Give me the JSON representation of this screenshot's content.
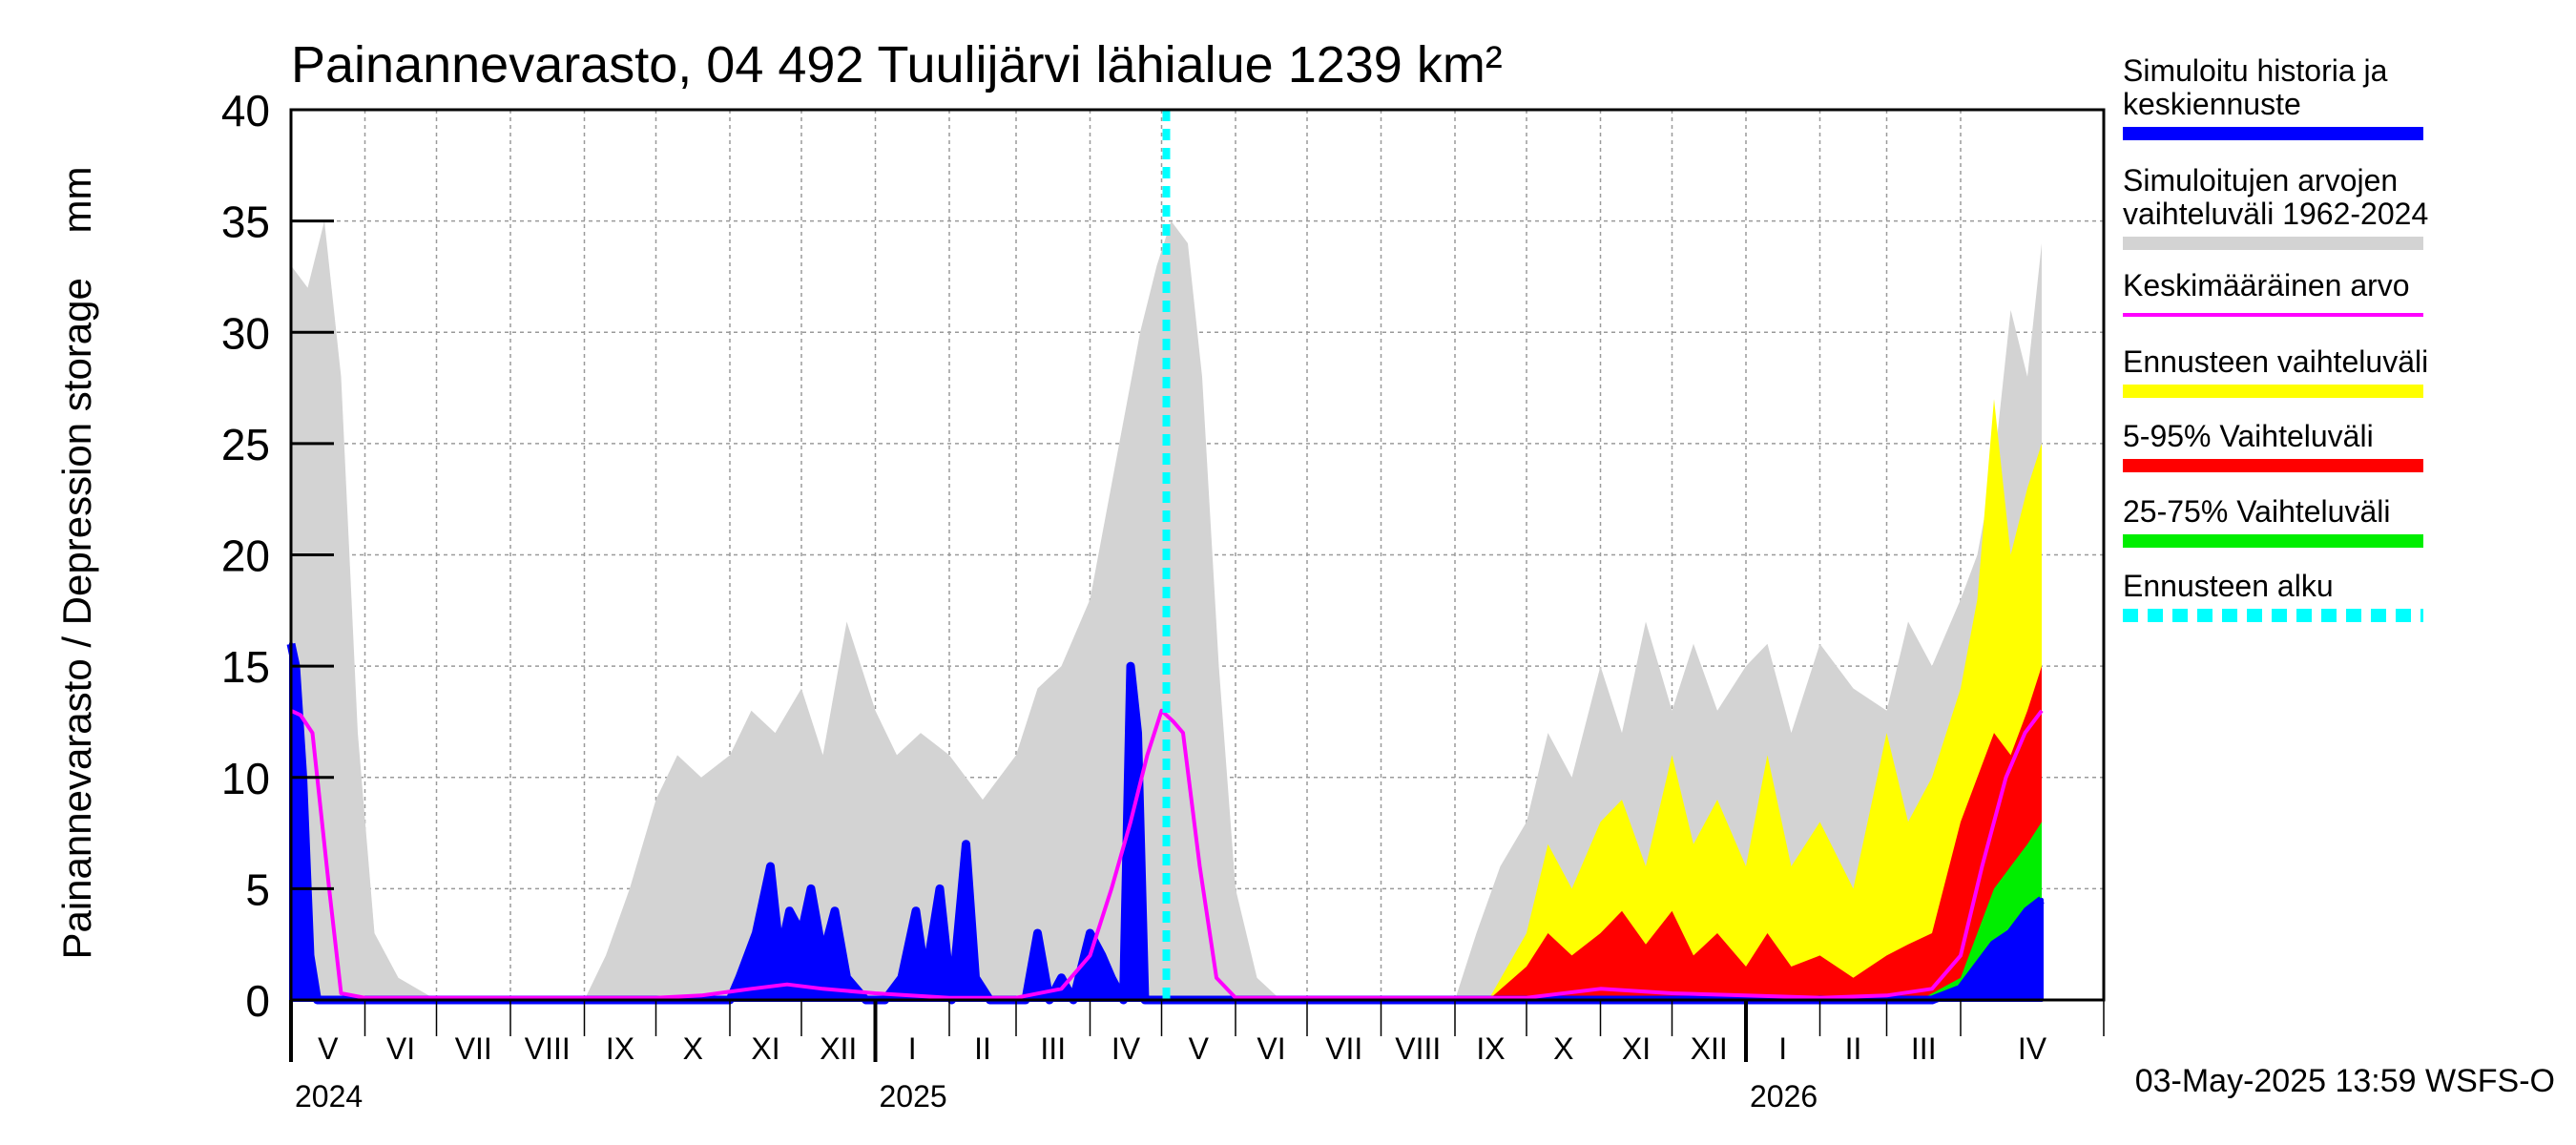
{
  "chart_data": {
    "type": "area",
    "title": "Painannevarasto, 04 492 Tuulijärvi lähialue 1239 km²",
    "ylabel": "Painannevarasto / Depression storage    mm",
    "ylim": [
      0,
      40
    ],
    "yticks": [
      0,
      5,
      10,
      15,
      20,
      25,
      30,
      35,
      40
    ],
    "grid": true,
    "x_start": "2024-05-01",
    "x_end": "2026-05-31",
    "forecast_start": "2025-05-03",
    "months": [
      {
        "label": "V",
        "start": "2024-05-01"
      },
      {
        "label": "VI",
        "start": "2024-06-01"
      },
      {
        "label": "VII",
        "start": "2024-07-01"
      },
      {
        "label": "VIII",
        "start": "2024-08-01"
      },
      {
        "label": "IX",
        "start": "2024-09-01"
      },
      {
        "label": "X",
        "start": "2024-10-01"
      },
      {
        "label": "XI",
        "start": "2024-11-01"
      },
      {
        "label": "XII",
        "start": "2024-12-01"
      },
      {
        "label": "I",
        "start": "2025-01-01"
      },
      {
        "label": "II",
        "start": "2025-02-01"
      },
      {
        "label": "III",
        "start": "2025-03-01"
      },
      {
        "label": "IV",
        "start": "2025-04-01"
      },
      {
        "label": "V",
        "start": "2025-05-01"
      },
      {
        "label": "VI",
        "start": "2025-06-01"
      },
      {
        "label": "VII",
        "start": "2025-07-01"
      },
      {
        "label": "VIII",
        "start": "2025-08-01"
      },
      {
        "label": "IX",
        "start": "2025-09-01"
      },
      {
        "label": "X",
        "start": "2025-10-01"
      },
      {
        "label": "XI",
        "start": "2025-11-01"
      },
      {
        "label": "XII",
        "start": "2025-12-01"
      },
      {
        "label": "I",
        "start": "2026-01-01"
      },
      {
        "label": "II",
        "start": "2026-02-01"
      },
      {
        "label": "III",
        "start": "2026-03-01"
      },
      {
        "label": "IV",
        "start": "2026-04-01"
      }
    ],
    "years": [
      {
        "label": "2024",
        "at": "2024-05-01"
      },
      {
        "label": "2025",
        "at": "2025-01-01"
      },
      {
        "label": "2026",
        "at": "2026-01-01"
      }
    ],
    "series": [
      {
        "name": "Simuloitujen arvojen vaihteluväli 1962-2024",
        "color": "#d3d3d3",
        "kind": "band",
        "x": [
          "2024-05-01",
          "2024-05-08",
          "2024-05-15",
          "2024-05-22",
          "2024-05-29",
          "2024-06-05",
          "2024-06-15",
          "2024-07-01",
          "2024-08-01",
          "2024-09-01",
          "2024-09-10",
          "2024-09-20",
          "2024-10-01",
          "2024-10-10",
          "2024-10-20",
          "2024-11-01",
          "2024-11-10",
          "2024-11-20",
          "2024-12-01",
          "2024-12-10",
          "2024-12-20",
          "2025-01-01",
          "2025-01-10",
          "2025-01-20",
          "2025-02-01",
          "2025-02-15",
          "2025-03-01",
          "2025-03-10",
          "2025-03-20",
          "2025-04-01",
          "2025-04-08",
          "2025-04-15",
          "2025-04-22",
          "2025-04-29",
          "2025-05-05",
          "2025-05-12",
          "2025-05-18",
          "2025-05-25",
          "2025-06-01",
          "2025-06-10",
          "2025-06-20",
          "2025-07-01",
          "2025-08-01",
          "2025-09-01",
          "2025-09-10",
          "2025-09-20",
          "2025-10-01",
          "2025-10-10",
          "2025-10-20",
          "2025-11-01",
          "2025-11-10",
          "2025-11-20",
          "2025-12-01",
          "2025-12-10",
          "2025-12-20",
          "2026-01-01",
          "2026-01-10",
          "2026-01-20",
          "2026-02-01",
          "2026-02-15",
          "2026-03-01",
          "2026-03-10",
          "2026-03-20",
          "2026-04-01",
          "2026-04-08",
          "2026-04-15",
          "2026-04-22",
          "2026-04-29",
          "2026-05-05"
        ],
        "values": [
          33,
          32,
          35,
          28,
          12,
          3,
          1,
          0,
          0,
          0,
          2,
          5,
          9,
          11,
          10,
          11,
          13,
          12,
          14,
          11,
          17,
          13,
          11,
          12,
          11,
          9,
          11,
          14,
          15,
          18,
          22,
          26,
          30,
          33,
          35,
          34,
          28,
          15,
          5,
          1,
          0,
          0,
          0,
          0,
          3,
          6,
          8,
          12,
          10,
          15,
          12,
          17,
          13,
          16,
          13,
          15,
          16,
          12,
          16,
          14,
          13,
          17,
          15,
          18,
          20,
          24,
          31,
          28,
          34
        ]
      },
      {
        "name": "Ennusteen vaihteluväli",
        "color": "#ffff00",
        "kind": "band",
        "x": [
          "2025-09-15",
          "2025-10-01",
          "2025-10-10",
          "2025-10-20",
          "2025-11-01",
          "2025-11-10",
          "2025-11-20",
          "2025-12-01",
          "2025-12-10",
          "2025-12-20",
          "2026-01-01",
          "2026-01-10",
          "2026-01-20",
          "2026-02-01",
          "2026-02-15",
          "2026-03-01",
          "2026-03-10",
          "2026-03-20",
          "2026-04-01",
          "2026-04-08",
          "2026-04-15",
          "2026-04-22",
          "2026-04-29",
          "2026-05-05"
        ],
        "values": [
          0,
          3,
          7,
          5,
          8,
          9,
          6,
          11,
          7,
          9,
          6,
          11,
          6,
          8,
          5,
          12,
          8,
          10,
          14,
          18,
          27,
          20,
          23,
          25
        ]
      },
      {
        "name": "5-95% Vaihteluväli",
        "color": "#ff0000",
        "kind": "band",
        "x": [
          "2025-09-15",
          "2025-10-01",
          "2025-10-10",
          "2025-10-20",
          "2025-11-01",
          "2025-11-10",
          "2025-11-20",
          "2025-12-01",
          "2025-12-10",
          "2025-12-20",
          "2026-01-01",
          "2026-01-10",
          "2026-01-20",
          "2026-02-01",
          "2026-02-15",
          "2026-03-01",
          "2026-03-10",
          "2026-03-20",
          "2026-04-01",
          "2026-04-08",
          "2026-04-15",
          "2026-04-22",
          "2026-04-29",
          "2026-05-05"
        ],
        "values": [
          0,
          1.5,
          3,
          2,
          3,
          4,
          2.5,
          4,
          2,
          3,
          1.5,
          3,
          1.5,
          2,
          1,
          2,
          2.5,
          3,
          8,
          10,
          12,
          11,
          13,
          15
        ]
      },
      {
        "name": "25-75% Vaihteluväli",
        "color": "#00ee00",
        "kind": "band",
        "x": [
          "2025-09-15",
          "2026-03-15",
          "2026-04-01",
          "2026-04-08",
          "2026-04-15",
          "2026-04-22",
          "2026-04-29",
          "2026-05-05"
        ],
        "values": [
          0,
          0,
          1,
          3,
          5,
          6,
          7,
          8
        ]
      },
      {
        "name": "Keskimääräinen arvo",
        "color": "#ff00ff",
        "kind": "line",
        "x": [
          "2024-05-01",
          "2024-05-05",
          "2024-05-10",
          "2024-05-17",
          "2024-05-22",
          "2024-06-01",
          "2024-10-01",
          "2024-10-20",
          "2024-11-10",
          "2024-11-25",
          "2024-12-10",
          "2025-01-01",
          "2025-02-01",
          "2025-03-01",
          "2025-03-20",
          "2025-04-01",
          "2025-04-10",
          "2025-04-18",
          "2025-04-25",
          "2025-05-01",
          "2025-05-06",
          "2025-05-10",
          "2025-05-17",
          "2025-05-24",
          "2025-06-01",
          "2025-10-01",
          "2025-11-01",
          "2025-12-01",
          "2026-01-01",
          "2026-02-01",
          "2026-03-01",
          "2026-03-20",
          "2026-04-01",
          "2026-04-10",
          "2026-04-20",
          "2026-04-28",
          "2026-05-05"
        ],
        "values": [
          13,
          12.8,
          12,
          5,
          0.3,
          0.1,
          0.1,
          0.2,
          0.5,
          0.7,
          0.5,
          0.3,
          0.1,
          0.1,
          0.5,
          2,
          5,
          8,
          11,
          13,
          12.5,
          12,
          6,
          1,
          0.1,
          0.1,
          0.5,
          0.3,
          0.2,
          0.1,
          0.2,
          0.5,
          2,
          6,
          10,
          12,
          13
        ]
      },
      {
        "name": "Simuloitu historia ja keskiennuste",
        "color": "#0000ff",
        "kind": "spiky",
        "x": [
          "2024-05-01",
          "2024-05-03",
          "2024-05-06",
          "2024-05-09",
          "2024-05-12",
          "2024-11-01",
          "2024-11-05",
          "2024-11-12",
          "2024-11-18",
          "2024-11-22",
          "2024-11-26",
          "2024-12-01",
          "2024-12-05",
          "2024-12-10",
          "2024-12-15",
          "2024-12-20",
          "2024-12-28",
          "2025-01-05",
          "2025-01-12",
          "2025-01-18",
          "2025-01-22",
          "2025-01-28",
          "2025-02-02",
          "2025-02-08",
          "2025-02-12",
          "2025-02-18",
          "2025-02-25",
          "2025-03-01",
          "2025-03-05",
          "2025-03-10",
          "2025-03-15",
          "2025-03-20",
          "2025-03-25",
          "2025-04-01",
          "2025-04-06",
          "2025-04-10",
          "2025-04-15",
          "2025-04-18",
          "2025-04-21",
          "2025-04-24",
          "2025-05-01",
          "2026-03-20",
          "2026-04-01",
          "2026-04-08",
          "2026-04-15",
          "2026-04-22",
          "2026-04-29",
          "2026-05-05"
        ],
        "values": [
          16,
          15,
          10,
          2,
          0,
          0,
          1,
          3,
          6,
          2,
          4,
          3,
          5,
          2,
          4,
          1,
          0,
          0,
          1,
          4,
          1,
          5,
          0,
          7,
          1,
          0,
          0,
          0,
          0,
          3,
          0,
          1,
          0,
          3,
          2,
          1,
          0,
          15,
          12,
          0,
          0,
          0,
          0.5,
          1.5,
          2.5,
          3,
          4,
          4.5
        ]
      }
    ],
    "legend": [
      {
        "label": "Simuloitu historia ja keskiennuste",
        "color": "#0000ff",
        "style": "solid"
      },
      {
        "label": "Simuloitujen arvojen vaihteluväli 1962-2024",
        "color": "#d3d3d3",
        "style": "solid"
      },
      {
        "label": "Keskimääräinen arvo",
        "color": "#ff00ff",
        "style": "thin"
      },
      {
        "label": "Ennusteen vaihteluväli",
        "color": "#ffff00",
        "style": "solid"
      },
      {
        "label": "5-95% Vaihteluväli",
        "color": "#ff0000",
        "style": "solid"
      },
      {
        "label": "25-75% Vaihteluväli",
        "color": "#00ee00",
        "style": "solid"
      },
      {
        "label": "Ennusteen alku",
        "color": "#00ffff",
        "style": "dashed"
      }
    ],
    "footer": "03-May-2025 13:59 WSFS-O"
  }
}
